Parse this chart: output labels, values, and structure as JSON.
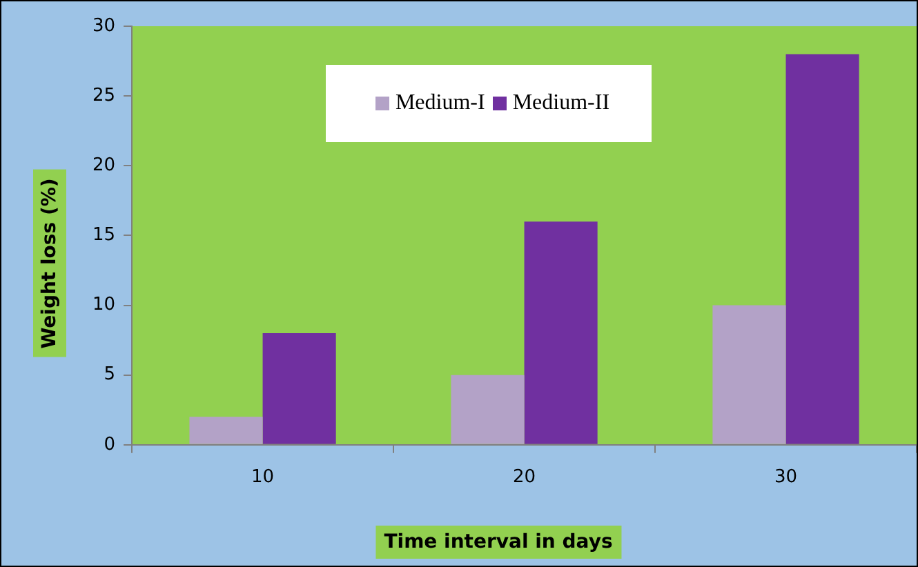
{
  "chart_data": {
    "type": "bar",
    "xlabel": "Time interval in days",
    "ylabel": "Weight loss (%)",
    "categories": [
      "10",
      "20",
      "30"
    ],
    "series": [
      {
        "name": "Medium-I",
        "color": "#b3a2c7",
        "values": [
          2,
          5,
          10
        ]
      },
      {
        "name": "Medium-II",
        "color": "#7030a0",
        "values": [
          8,
          16,
          28
        ]
      }
    ],
    "ylim": [
      0,
      30
    ],
    "yticks": [
      0,
      5,
      10,
      15,
      20,
      25,
      30
    ],
    "grid": false,
    "legend": "top"
  }
}
